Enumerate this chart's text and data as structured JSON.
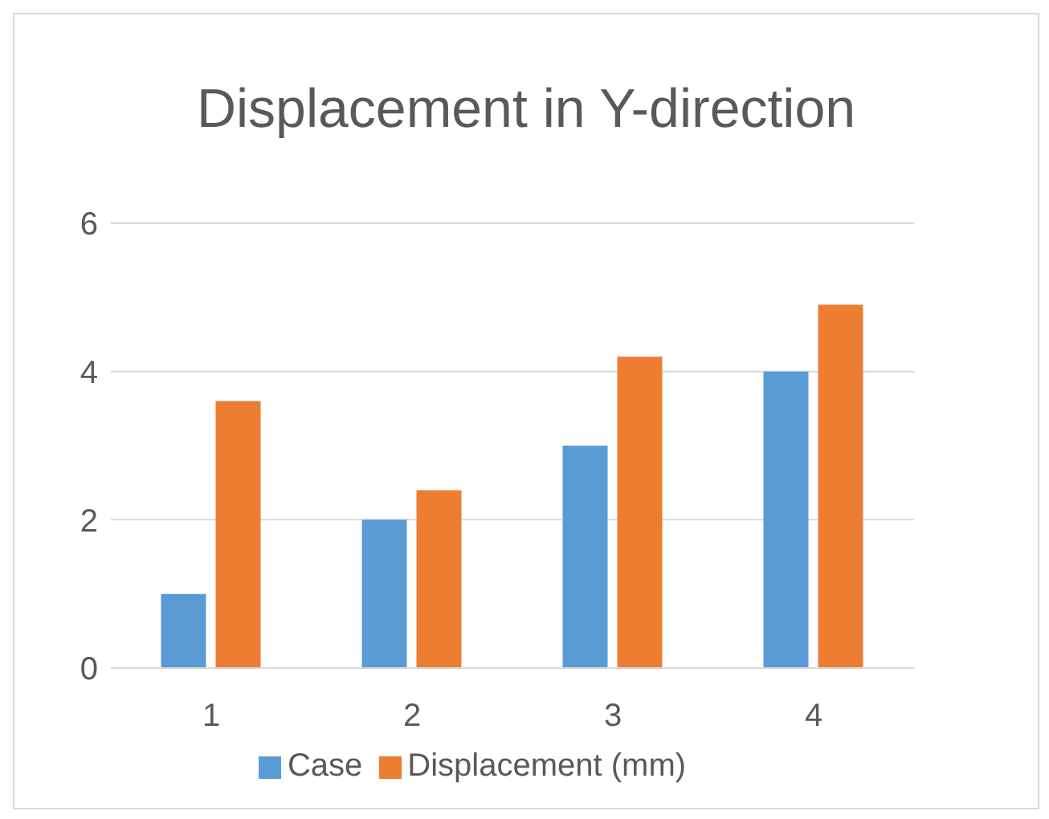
{
  "chart_data": {
    "type": "bar",
    "title": "Displacement in Y-direction",
    "categories": [
      "1",
      "2",
      "3",
      "4"
    ],
    "series": [
      {
        "name": "Case",
        "color": "#5b9bd5",
        "values": [
          1,
          2,
          3,
          4
        ]
      },
      {
        "name": "Displacement (mm)",
        "color": "#ed7d31",
        "values": [
          3.6,
          2.4,
          4.2,
          4.9
        ]
      }
    ],
    "ylim": [
      0,
      6
    ],
    "yticks": [
      0,
      2,
      4,
      6
    ],
    "grid": "y",
    "legend": "bottom"
  }
}
